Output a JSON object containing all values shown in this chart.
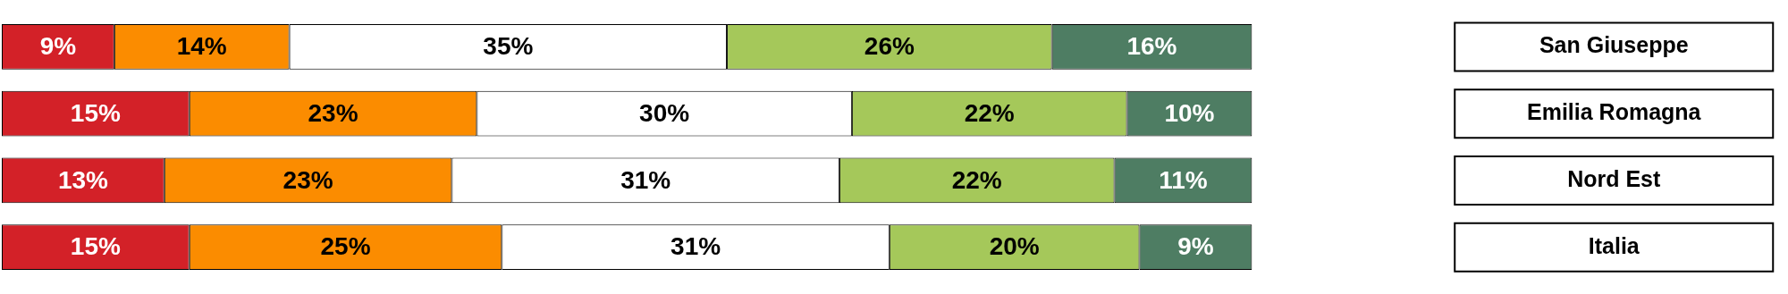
{
  "chart_data": {
    "type": "bar",
    "orientation": "horizontal",
    "stacked": true,
    "legend": false,
    "grid": false,
    "tick_labels": "y",
    "categories": [
      "San Giuseppe",
      "Emilia Romagna",
      "Nord Est",
      "Italia"
    ],
    "series": [
      {
        "color": "#d32128",
        "values": [
          9,
          15,
          13,
          15
        ],
        "value_labels": [
          "9%",
          "15%",
          "13%",
          "15%"
        ]
      },
      {
        "color": "#fb8c00",
        "values": [
          14,
          23,
          23,
          25
        ],
        "value_labels": [
          "14%",
          "23%",
          "23%",
          "25%"
        ]
      },
      {
        "color": "#ffffff",
        "values": [
          35,
          30,
          31,
          31
        ],
        "value_labels": [
          "35%",
          "30%",
          "31%",
          "31%"
        ]
      },
      {
        "color": "#a5c85a",
        "values": [
          26,
          22,
          22,
          20
        ],
        "value_labels": [
          "26%",
          "22%",
          "22%",
          "20%"
        ]
      },
      {
        "color": "#4e7d63",
        "values": [
          16,
          10,
          11,
          9
        ],
        "value_labels": [
          "16%",
          "10%",
          "11%",
          "9%"
        ]
      }
    ]
  }
}
